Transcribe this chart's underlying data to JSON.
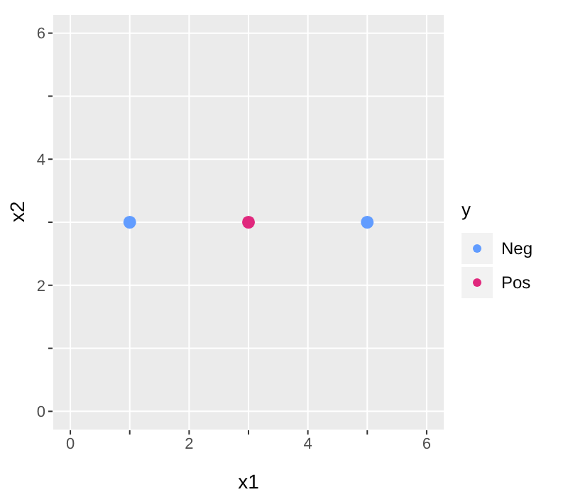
{
  "chart_data": {
    "type": "scatter",
    "xlabel": "x1",
    "ylabel": "x2",
    "legend_title": "y",
    "xlim": [
      -0.3,
      6.3
    ],
    "ylim": [
      -0.3,
      6.3
    ],
    "xticks": [
      0,
      {
        "value": 1,
        "label": null
      },
      2,
      {
        "value": 3,
        "label": null
      },
      4,
      {
        "value": 5,
        "label": null
      },
      6
    ],
    "yticks": [
      0,
      {
        "value": 1,
        "label": null
      },
      2,
      {
        "value": 3,
        "label": null
      },
      4,
      {
        "value": 5,
        "label": null
      },
      6
    ],
    "grid": true,
    "legend": "right",
    "marker": "circle",
    "series": [
      {
        "name": "Neg",
        "color": "#619cff",
        "x": [
          1,
          5
        ],
        "values": [
          3,
          3
        ]
      },
      {
        "name": "Pos",
        "color": "#e0287d",
        "x": [
          3
        ],
        "values": [
          3
        ]
      }
    ]
  }
}
